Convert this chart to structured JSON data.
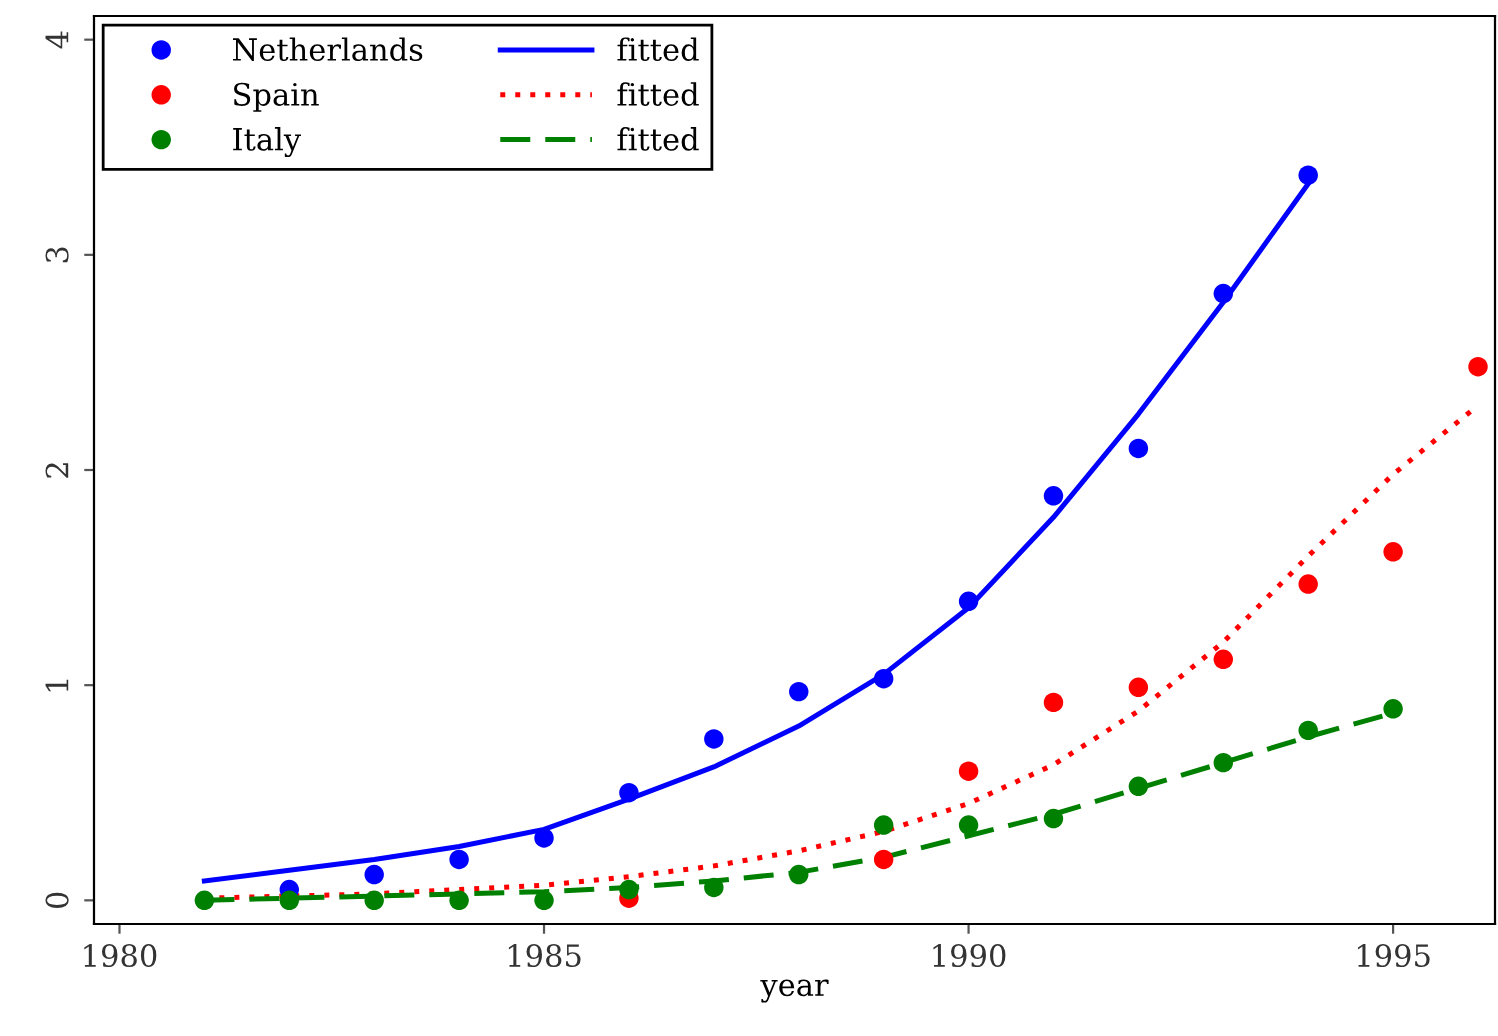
{
  "chart_data": {
    "type": "scatter",
    "xlabel": "year",
    "xlim": [
      1979.7,
      1996.2
    ],
    "ylim": [
      -0.11,
      4.11
    ],
    "xticks": [
      1980,
      1985,
      1990,
      1995
    ],
    "yticks": [
      0,
      1,
      2,
      3,
      4
    ],
    "grid": false,
    "legend": "top left",
    "series": [
      {
        "name": "Netherlands",
        "type": "scatter",
        "marker": "circle",
        "color": "#0000ff",
        "x": [
          1982,
          1983,
          1984,
          1985,
          1986,
          1987,
          1988,
          1989,
          1990,
          1991,
          1992,
          1993,
          1994
        ],
        "values": [
          0.05,
          0.12,
          0.19,
          0.29,
          0.5,
          0.75,
          0.97,
          1.03,
          1.39,
          1.88,
          2.1,
          2.82,
          3.37
        ]
      },
      {
        "name": "Spain",
        "type": "scatter",
        "marker": "circle",
        "color": "#ff0000",
        "x": [
          1986,
          1989,
          1990,
          1991,
          1992,
          1993,
          1994,
          1995,
          1996
        ],
        "values": [
          0.01,
          0.19,
          0.6,
          0.92,
          0.99,
          1.12,
          1.47,
          1.62,
          2.48
        ]
      },
      {
        "name": "Italy",
        "type": "scatter",
        "marker": "circle",
        "color": "#008000",
        "x": [
          1981,
          1982,
          1983,
          1984,
          1985,
          1986,
          1987,
          1988,
          1989,
          1990,
          1991,
          1992,
          1993,
          1994,
          1995
        ],
        "values": [
          0,
          0,
          0,
          0,
          0,
          0.05,
          0.06,
          0.12,
          0.35,
          0.35,
          0.38,
          0.53,
          0.64,
          0.79,
          0.89
        ]
      },
      {
        "name": "fitted",
        "type": "line",
        "line_style": "solid",
        "color": "#0000ff",
        "x": [
          1981,
          1982,
          1983,
          1984,
          1985,
          1986,
          1987,
          1988,
          1989,
          1990,
          1991,
          1992,
          1993,
          1994
        ],
        "values": [
          0.09,
          0.14,
          0.19,
          0.25,
          0.33,
          0.47,
          0.62,
          0.81,
          1.05,
          1.36,
          1.78,
          2.26,
          2.78,
          3.33
        ]
      },
      {
        "name": "fitted",
        "type": "line",
        "line_style": "dotted",
        "color": "#ff0000",
        "x": [
          1981,
          1982,
          1983,
          1984,
          1985,
          1986,
          1987,
          1988,
          1989,
          1990,
          1991,
          1992,
          1993,
          1994,
          1995,
          1996
        ],
        "values": [
          0.01,
          0.02,
          0.03,
          0.05,
          0.07,
          0.11,
          0.16,
          0.23,
          0.32,
          0.45,
          0.63,
          0.88,
          1.2,
          1.6,
          1.98,
          2.3
        ]
      },
      {
        "name": "fitted",
        "type": "line",
        "line_style": "dashed",
        "color": "#008000",
        "x": [
          1981,
          1982,
          1983,
          1984,
          1985,
          1986,
          1987,
          1988,
          1989,
          1990,
          1991,
          1992,
          1993,
          1994,
          1995
        ],
        "values": [
          0,
          0.01,
          0.02,
          0.03,
          0.04,
          0.06,
          0.09,
          0.13,
          0.2,
          0.3,
          0.4,
          0.52,
          0.64,
          0.76,
          0.87
        ]
      }
    ]
  }
}
